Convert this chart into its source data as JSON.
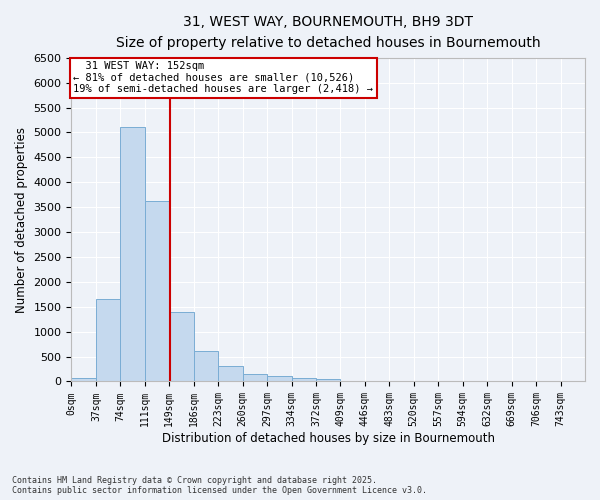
{
  "title": "31, WEST WAY, BOURNEMOUTH, BH9 3DT",
  "subtitle": "Size of property relative to detached houses in Bournemouth",
  "xlabel": "Distribution of detached houses by size in Bournemouth",
  "ylabel": "Number of detached properties",
  "bar_color": "#c5d9ee",
  "bar_edge_color": "#7aadd4",
  "background_color": "#eef2f8",
  "grid_color": "#ffffff",
  "categories": [
    "0sqm",
    "37sqm",
    "74sqm",
    "111sqm",
    "149sqm",
    "186sqm",
    "223sqm",
    "260sqm",
    "297sqm",
    "334sqm",
    "372sqm",
    "409sqm",
    "446sqm",
    "483sqm",
    "520sqm",
    "557sqm",
    "594sqm",
    "632sqm",
    "669sqm",
    "706sqm",
    "743sqm"
  ],
  "values": [
    65,
    1660,
    5100,
    3620,
    1400,
    610,
    305,
    150,
    110,
    75,
    40,
    0,
    0,
    0,
    0,
    0,
    0,
    0,
    0,
    0,
    0
  ],
  "property_line_x": 149,
  "bin_width": 37,
  "ylim": [
    0,
    6500
  ],
  "yticks": [
    0,
    500,
    1000,
    1500,
    2000,
    2500,
    3000,
    3500,
    4000,
    4500,
    5000,
    5500,
    6000,
    6500
  ],
  "annotation_text": "  31 WEST WAY: 152sqm\n← 81% of detached houses are smaller (10,526)\n19% of semi-detached houses are larger (2,418) →",
  "annotation_box_color": "#ffffff",
  "annotation_box_edge_color": "#cc0000",
  "vline_color": "#cc0000",
  "footer_line1": "Contains HM Land Registry data © Crown copyright and database right 2025.",
  "footer_line2": "Contains public sector information licensed under the Open Government Licence v3.0."
}
